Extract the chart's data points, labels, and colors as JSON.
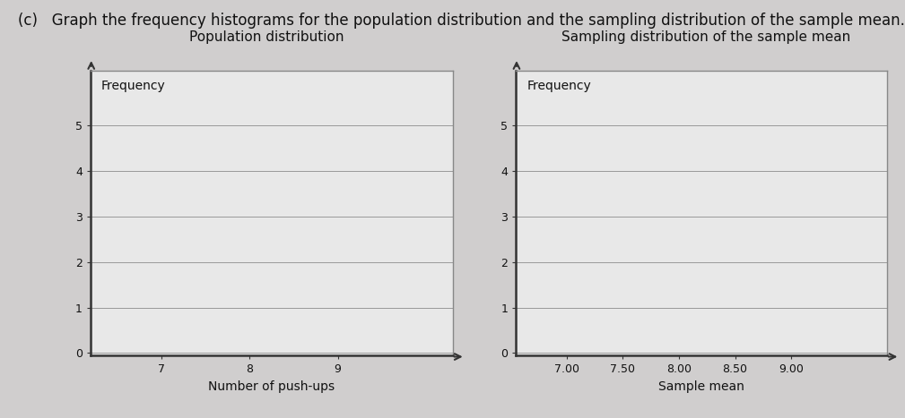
{
  "title_main": "(c)   Graph the frequency histograms for the population distribution and the sampling distribution of the sample mean.",
  "left_title": "Population distribution",
  "right_title": "Sampling distribution of the sample mean",
  "left_ylabel": "Frequency",
  "right_ylabel": "Frequency",
  "left_xlabel": "Number of push-ups",
  "right_xlabel": "Sample mean",
  "left_yticks": [
    0,
    1,
    2,
    3,
    4,
    5
  ],
  "left_xticks": [
    7,
    8,
    9
  ],
  "right_yticks": [
    0,
    1,
    2,
    3,
    4,
    5
  ],
  "right_xticks": [
    7.0,
    7.5,
    8.0,
    8.5,
    9.0
  ],
  "left_xlim": [
    6.2,
    10.3
  ],
  "left_ylim": [
    -0.05,
    6.2
  ],
  "right_xlim": [
    6.55,
    9.85
  ],
  "right_ylim": [
    -0.05,
    6.2
  ],
  "bg_color": "#d0cece",
  "plot_bg_color": "#e8e8e8",
  "grid_color": "#999999",
  "axis_color": "#333333",
  "text_color": "#111111",
  "border_color": "#888888",
  "font_size_title": 12,
  "font_size_subtitle": 11,
  "font_size_label": 10,
  "font_size_tick": 9,
  "font_size_freq_label": 10
}
